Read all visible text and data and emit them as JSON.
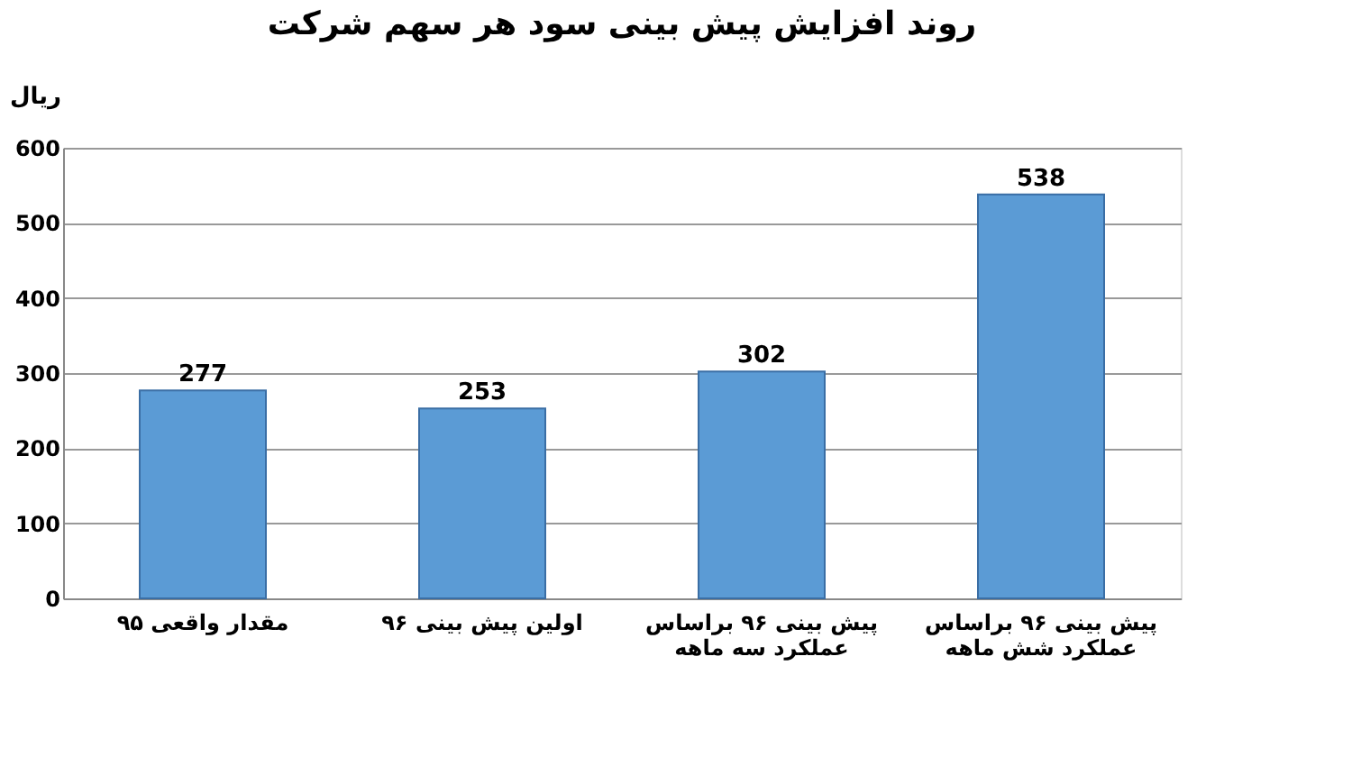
{
  "chart_data": {
    "type": "bar",
    "title": "روند افزایش پیش بینی سود هر سهم شرکت",
    "ylabel": "ریال",
    "categories": [
      "مقدار واقعی ۹۵",
      "اولین پیش بینی ۹۶",
      "پیش بینی ۹۶ براساس عملکرد سه ماهه",
      "پیش بینی ۹۶ براساس عملکرد شش ماهه"
    ],
    "values": [
      277,
      253,
      302,
      538
    ],
    "color": "#5b9bd5",
    "ylim": [
      0,
      600
    ],
    "yticks": [
      0,
      100,
      200,
      300,
      400,
      500,
      600
    ],
    "grid": true,
    "data_labels": true
  }
}
